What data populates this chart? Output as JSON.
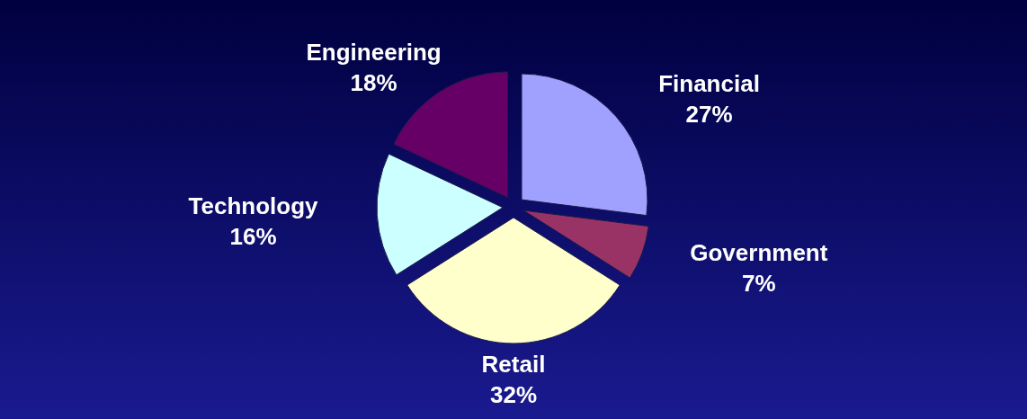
{
  "chart_data": {
    "type": "pie",
    "categories": [
      "Financial",
      "Government",
      "Retail",
      "Technology",
      "Engineering"
    ],
    "values": [
      27,
      7,
      32,
      16,
      18
    ],
    "value_labels": [
      "27%",
      "7%",
      "32%",
      "16%",
      "18%"
    ],
    "colors": [
      "#a0a0ff",
      "#993366",
      "#ffffcc",
      "#ccffff",
      "#660066"
    ]
  }
}
